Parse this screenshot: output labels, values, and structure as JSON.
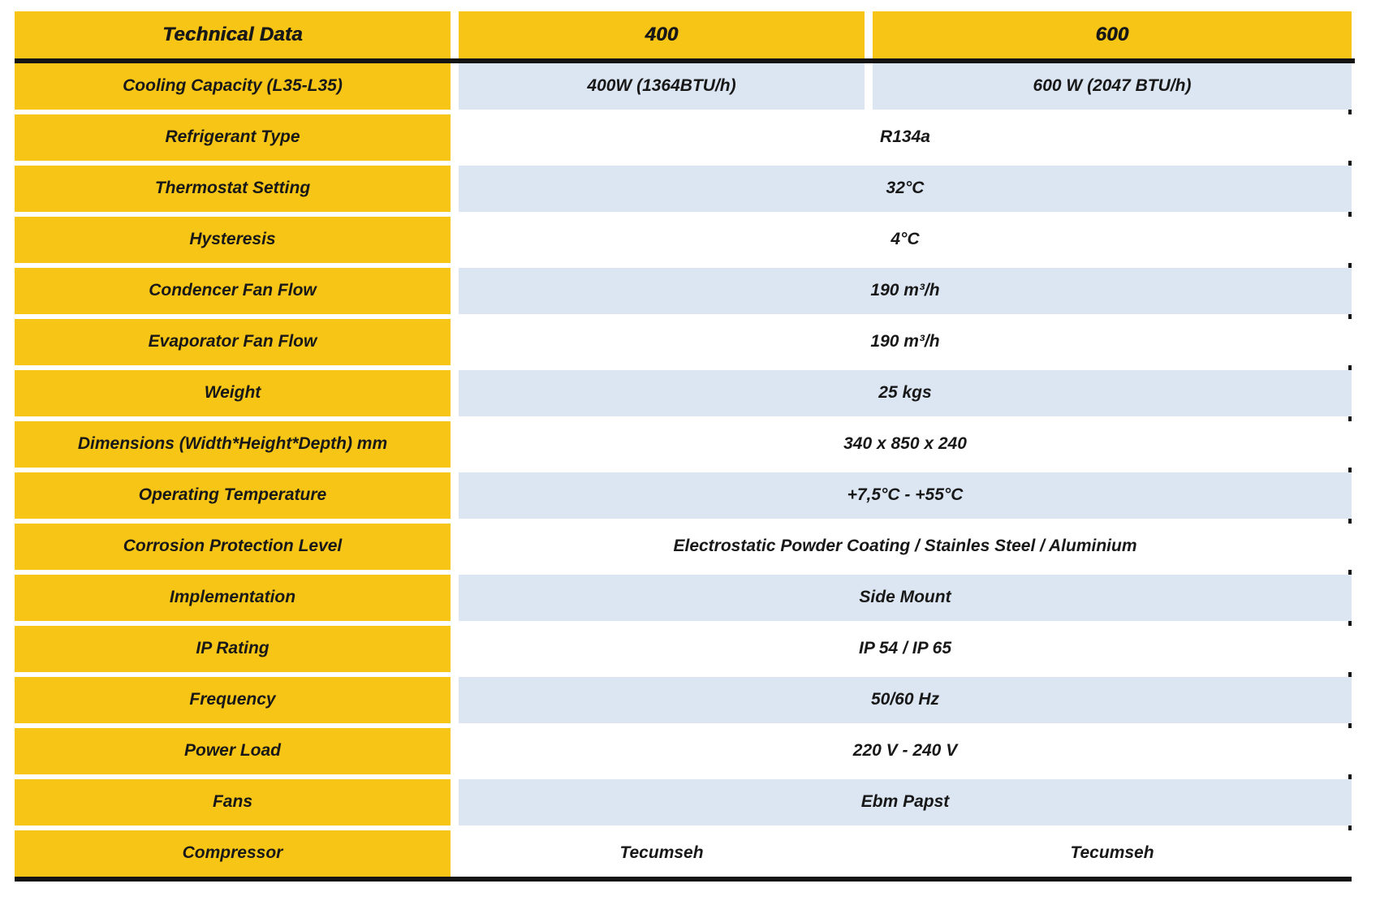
{
  "colors": {
    "yellow": "#F7C516",
    "light_blue": "#DCE6F2",
    "rule_black": "#141414"
  },
  "table": {
    "header": {
      "title": "Technical Data",
      "model_400": "400",
      "model_600": "600"
    },
    "rows": [
      {
        "label": "Cooling Capacity (L35-L35)",
        "values": [
          "400W (1364BTU/h)",
          "600 W (2047 BTU/h)"
        ],
        "shade": "blue"
      },
      {
        "label": "Refrigerant Type",
        "value": "R134a",
        "shade": "white"
      },
      {
        "label": "Thermostat Setting",
        "value": "32°C",
        "shade": "blue"
      },
      {
        "label": "Hysteresis",
        "value": "4°C",
        "shade": "white"
      },
      {
        "label": "Condencer Fan Flow",
        "value": "190 m³/h",
        "shade": "blue"
      },
      {
        "label": "Evaporator Fan Flow",
        "value": "190 m³/h",
        "shade": "white"
      },
      {
        "label": "Weight",
        "value": "25 kgs",
        "shade": "blue"
      },
      {
        "label": "Dimensions (Width*Height*Depth) mm",
        "value": "340 x 850 x 240",
        "shade": "white"
      },
      {
        "label": "Operating Temperature",
        "value": "+7,5°C - +55°C",
        "shade": "blue"
      },
      {
        "label": "Corrosion Protection Level",
        "value": "Electrostatic Powder Coating / Stainles Steel / Aluminium",
        "shade": "white"
      },
      {
        "label": "Implementation",
        "value": "Side Mount",
        "shade": "blue"
      },
      {
        "label": "IP Rating",
        "value": "IP 54 / IP 65",
        "shade": "white"
      },
      {
        "label": "Frequency",
        "value": "50/60 Hz",
        "shade": "blue"
      },
      {
        "label": "Power Load",
        "value": "220 V - 240 V",
        "shade": "white"
      },
      {
        "label": "Fans",
        "value": "Ebm Papst",
        "shade": "blue"
      },
      {
        "label": "Compressor",
        "values": [
          "Tecumseh",
          "Tecumseh"
        ],
        "shade": "white"
      }
    ]
  }
}
